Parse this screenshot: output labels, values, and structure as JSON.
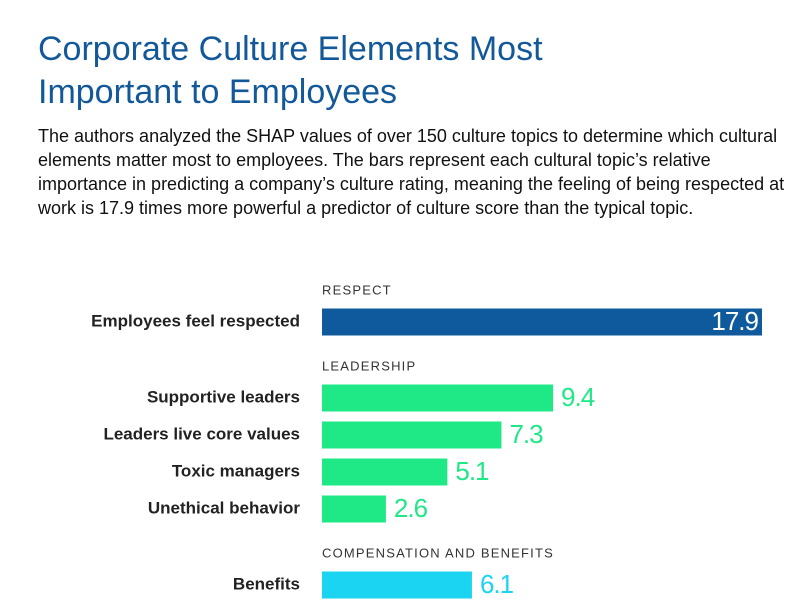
{
  "chart_data": {
    "type": "grouped-hbar",
    "title": "Corporate Culture Elements Most Important to Employees",
    "subtitle": "The authors analyzed the SHAP values of over 150 culture topics to determine which cultural elements matter most to employees. The bars represent each cultural topic’s relative importance in predicting a company’s culture rating, meaning the feeling of being respected at work is 17.9 times more powerful a predictor of culture score than the typical topic.",
    "groups": [
      {
        "name": "RESPECT",
        "color": "#0f5a9c",
        "categories": [
          "Employees feel respected"
        ],
        "values": [
          17.9
        ]
      },
      {
        "name": "LEADERSHIP",
        "color": "#1fe887",
        "categories": [
          "Supportive leaders",
          "Leaders live core values",
          "Toxic managers",
          "Unethical behavior"
        ],
        "values": [
          9.4,
          7.3,
          5.1,
          2.6
        ]
      },
      {
        "name": "COMPENSATION AND BENEFITS",
        "color": "#1ad4f2",
        "categories": [
          "Benefits"
        ],
        "values": [
          6.1
        ]
      }
    ]
  }
}
